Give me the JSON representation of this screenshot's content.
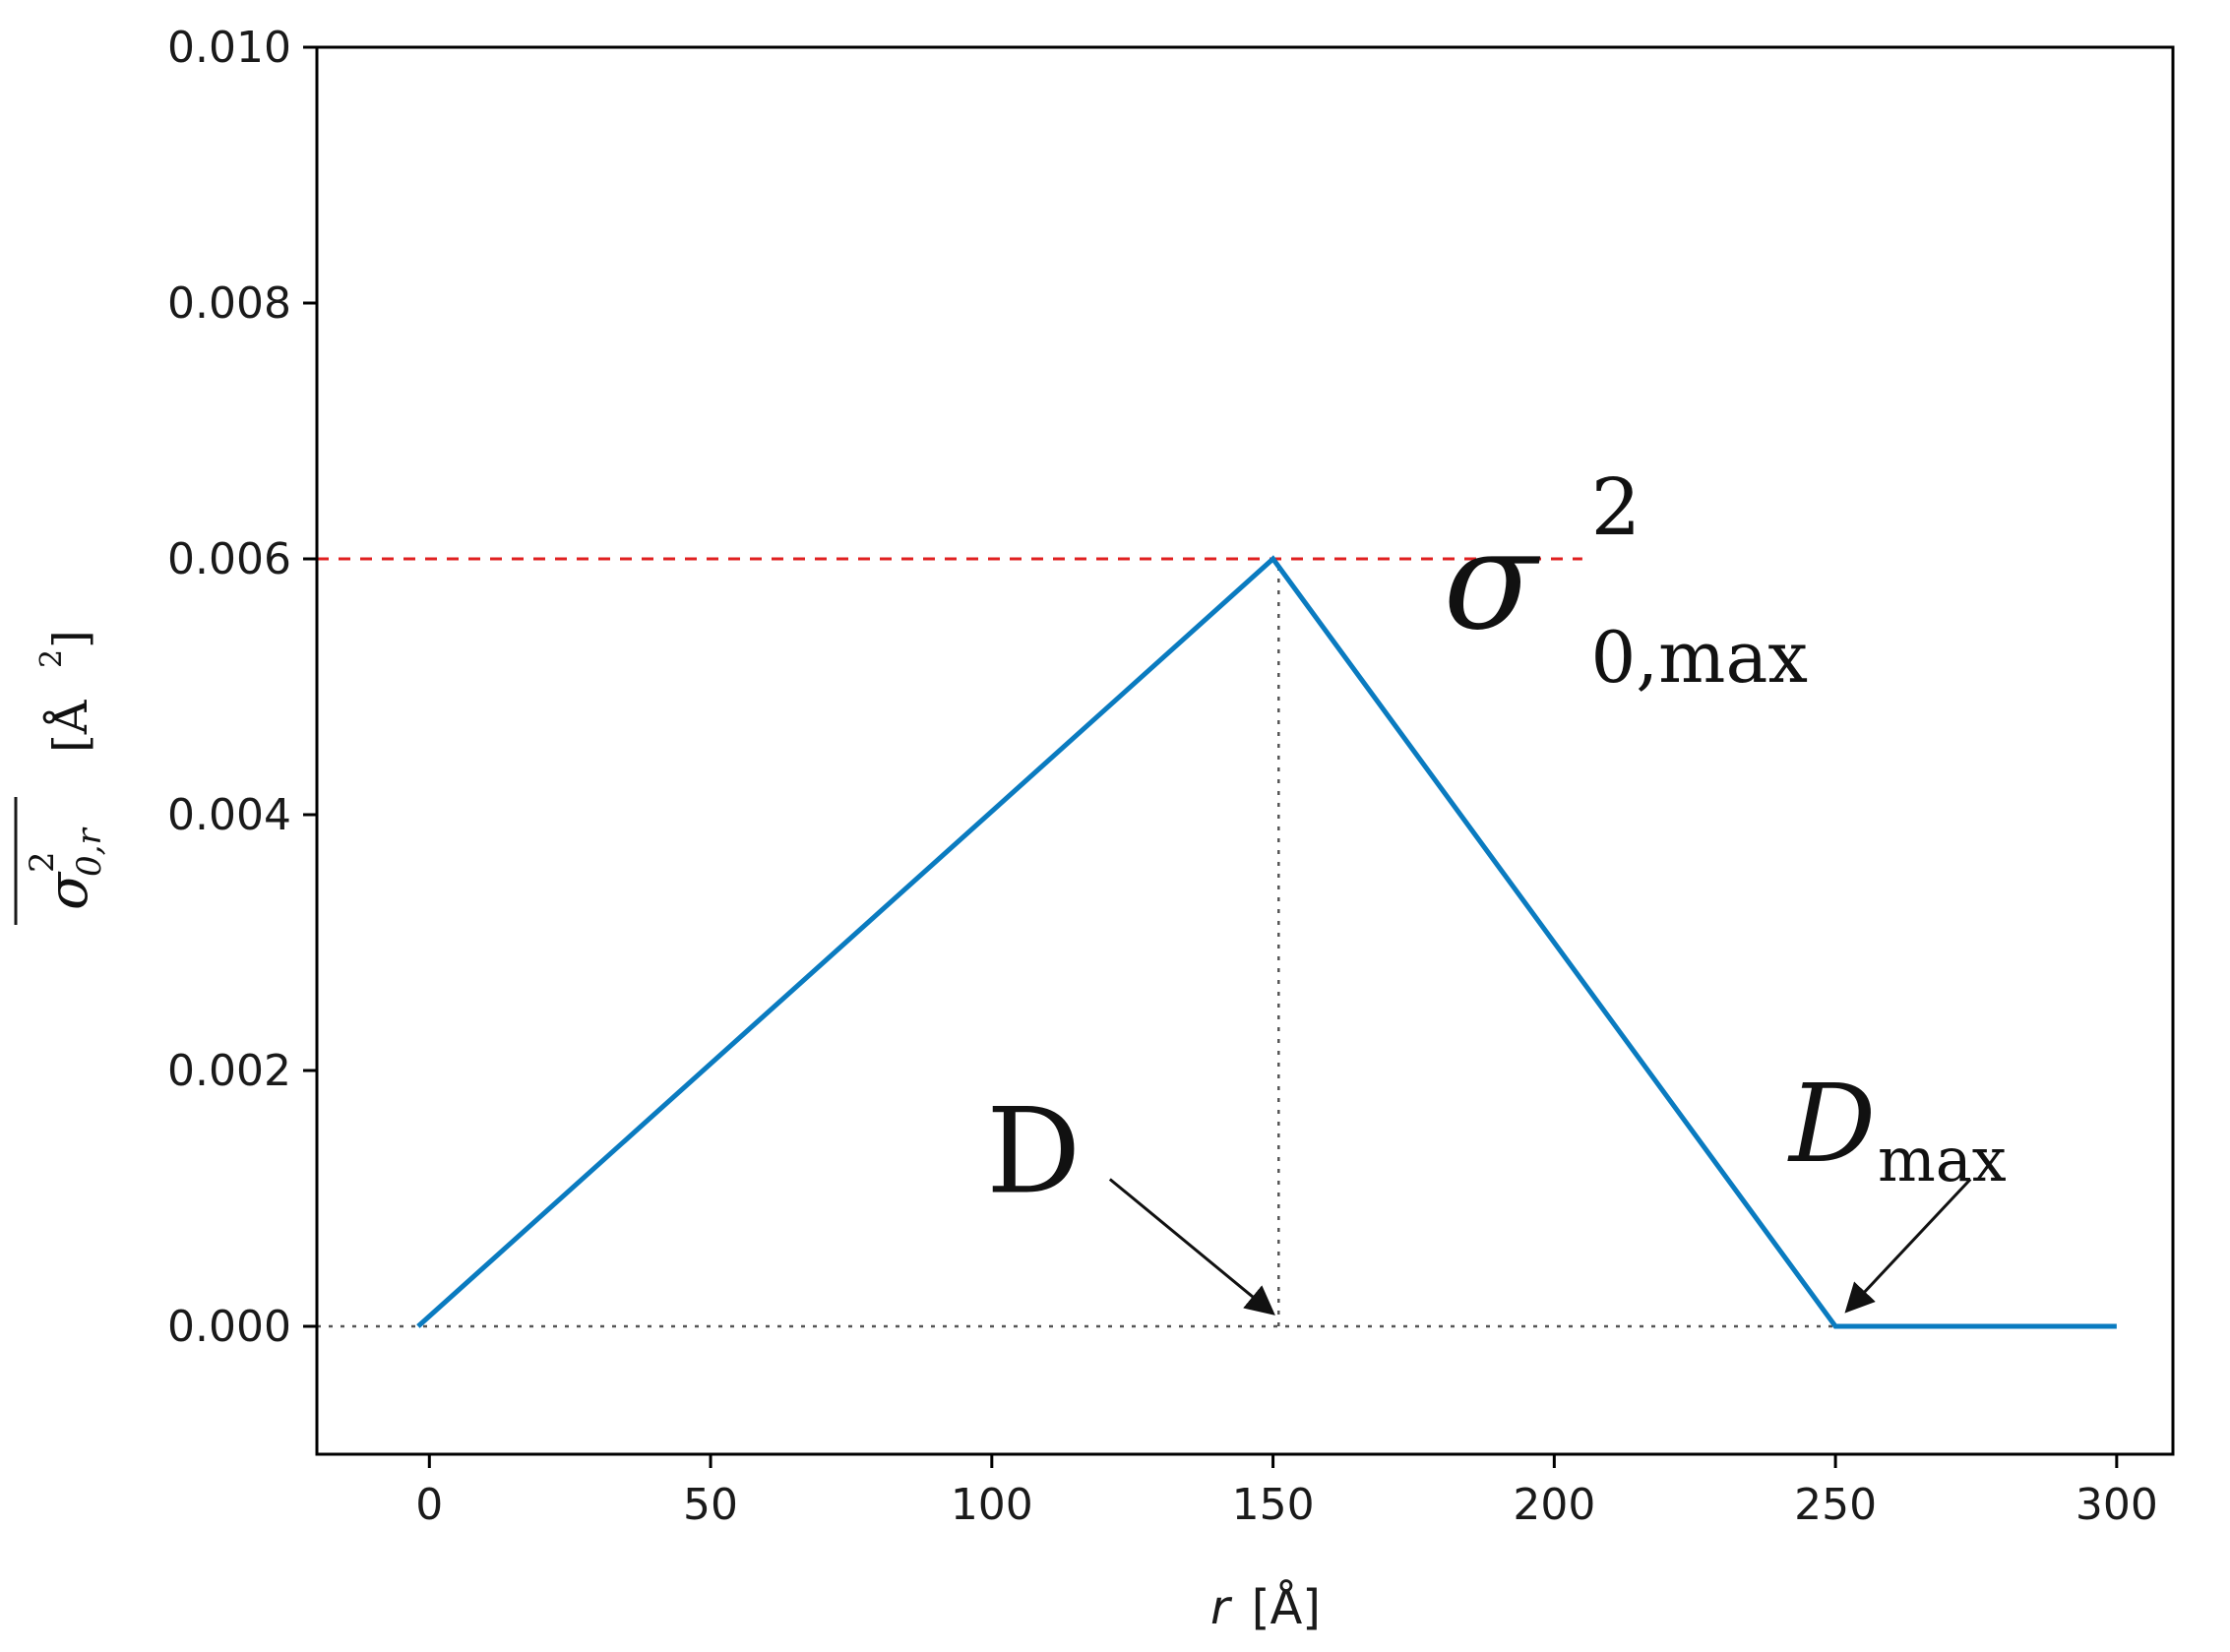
{
  "chart_data": {
    "type": "line",
    "title": "",
    "xlabel": {
      "var": "r",
      "unit": "[Å]"
    },
    "ylabel": {
      "sym": "σ",
      "sup": "2",
      "sub": "0,r",
      "unit": "[Å",
      "unit_sup": "2",
      "unit_close": "]"
    },
    "xlim": [
      -20,
      310
    ],
    "ylim": [
      -0.001,
      0.01
    ],
    "x_ticks": [
      0,
      50,
      100,
      150,
      200,
      250,
      300
    ],
    "x_tick_labels": [
      "0",
      "50",
      "100",
      "150",
      "200",
      "250",
      "300"
    ],
    "y_ticks": [
      0.0,
      0.002,
      0.004,
      0.006,
      0.008,
      0.01
    ],
    "y_tick_labels": [
      "0.000",
      "0.002",
      "0.004",
      "0.006",
      "0.008",
      "0.010"
    ],
    "grid": false,
    "series": [
      {
        "color": "#0a7bc0",
        "x": [
          -2,
          150,
          250,
          300
        ],
        "y": [
          0.0,
          0.006,
          0.0,
          0.0
        ]
      }
    ],
    "reference_lines": {
      "horizontal_max": {
        "y": 0.006,
        "x_from": -20,
        "x_to": 205,
        "color": "#e02020",
        "style": "dashed"
      },
      "horizontal_zero": {
        "y": 0.0,
        "x_from": -20,
        "x_to": 282,
        "color": "#555555",
        "style": "dotted"
      },
      "vertical_peak": {
        "x": 151,
        "y_from": 0.0,
        "y_to": 0.006,
        "color": "#555555",
        "style": "dotted"
      }
    },
    "annotations": [
      {
        "id": "sigma-max",
        "sym": "σ",
        "sup": "2",
        "sub": "0,max",
        "x": 210,
        "y": 0.0055
      },
      {
        "id": "D",
        "text": "D",
        "x": 99,
        "y": 0.00105,
        "arrow_from": [
          121,
          0.00115
        ],
        "arrow_to": [
          150,
          0.0001
        ]
      },
      {
        "id": "D-max",
        "text": "D",
        "sub": "max",
        "x": 261,
        "y": 0.0016,
        "arrow_from": [
          274,
          0.00115
        ],
        "arrow_to": [
          252,
          0.00012
        ]
      }
    ]
  }
}
